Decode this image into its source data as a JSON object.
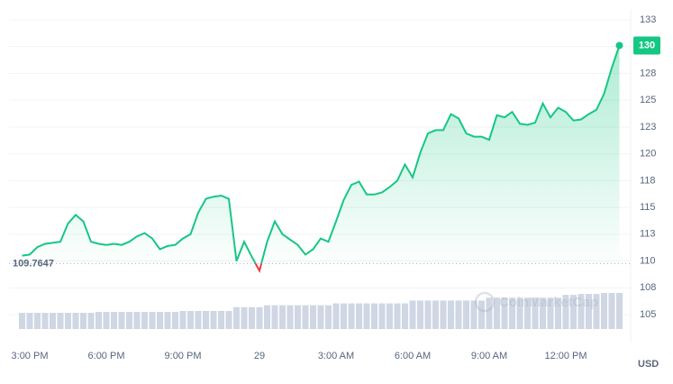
{
  "chart_data": {
    "type": "line",
    "categories": [
      null,
      "3:00 PM",
      null,
      null,
      null,
      null,
      null,
      null,
      null,
      null,
      null,
      "6:00 PM",
      null,
      null,
      null,
      null,
      null,
      null,
      null,
      null,
      null,
      "9:00 PM",
      null,
      null,
      null,
      null,
      null,
      null,
      null,
      null,
      null,
      "29",
      null,
      null,
      null,
      null,
      null,
      null,
      null,
      null,
      null,
      "3:00 AM",
      null,
      null,
      null,
      null,
      null,
      null,
      null,
      null,
      null,
      "6:00 AM",
      null,
      null,
      null,
      null,
      null,
      null,
      null,
      null,
      null,
      "9:00 AM",
      null,
      null,
      null,
      null,
      null,
      null,
      null,
      null,
      null,
      "12:00 PM",
      null,
      null,
      null,
      null,
      null,
      null,
      null
    ],
    "series": [
      {
        "name": "Price",
        "color": "#16c784",
        "below_color": "#ea3943",
        "values": [
          110.5,
          110.6,
          111.3,
          111.6,
          111.7,
          111.8,
          113.5,
          114.3,
          113.7,
          111.8,
          111.6,
          111.5,
          111.6,
          111.5,
          111.8,
          112.3,
          112.6,
          112.1,
          111.1,
          111.4,
          111.5,
          112.1,
          112.5,
          114.5,
          115.8,
          116.0,
          116.1,
          115.8,
          110.0,
          111.8,
          110.4,
          109.1,
          111.8,
          113.7,
          112.5,
          112.0,
          111.5,
          110.6,
          111.1,
          112.1,
          111.8,
          113.7,
          115.7,
          117.1,
          117.4,
          116.2,
          116.2,
          116.4,
          116.9,
          117.5,
          119.0,
          117.8,
          120.1,
          121.9,
          122.2,
          122.2,
          123.7,
          123.3,
          121.9,
          121.6,
          121.6,
          121.3,
          123.6,
          123.4,
          123.9,
          122.8,
          122.7,
          122.9,
          124.7,
          123.4,
          124.3,
          123.9,
          123.1,
          123.2,
          123.7,
          124.1,
          125.6,
          128.0,
          130.1
        ],
        "value_labels": [
          null,
          null,
          null,
          null,
          null,
          null,
          null,
          null,
          null,
          null,
          null,
          null,
          null,
          null,
          null,
          null,
          null,
          null,
          null,
          null,
          null,
          null,
          null,
          null,
          null,
          null,
          null,
          null,
          null,
          null,
          null,
          null,
          null,
          null,
          null,
          null,
          null,
          null,
          null,
          null,
          null,
          null,
          null,
          null,
          null,
          null,
          null,
          null,
          null,
          null,
          null,
          null,
          null,
          null,
          null,
          null,
          null,
          null,
          null,
          null,
          null,
          null,
          null,
          null,
          null,
          null,
          null,
          null,
          null,
          null,
          null,
          null,
          null,
          null,
          null,
          null,
          null,
          null,
          "130"
        ]
      },
      {
        "name": "Volume",
        "color": "#cfd6e4",
        "values": [
          17,
          17,
          17,
          17,
          17,
          17,
          17,
          17,
          17,
          17,
          18,
          18,
          18,
          18,
          18,
          18,
          18,
          18,
          18,
          18,
          18,
          19,
          19,
          19,
          19,
          19,
          19,
          19,
          23,
          23,
          23,
          23,
          25,
          25,
          25,
          25,
          25,
          25,
          25,
          25,
          25,
          27,
          27,
          27,
          27,
          27,
          27,
          27,
          27,
          27,
          27,
          30,
          30,
          30,
          30,
          30,
          30,
          30,
          30,
          30,
          30,
          33,
          33,
          33,
          33,
          33,
          33,
          33,
          33,
          33,
          33,
          36,
          36,
          37,
          37,
          37,
          38,
          38,
          38
        ]
      }
    ],
    "reference_line": 109.7647,
    "ylim": [
      102.4,
      133.5
    ],
    "yticks": [
      105,
      {
        "value": 107.5,
        "label": "108"
      },
      110,
      {
        "value": 112.5,
        "label": "113"
      },
      115,
      {
        "value": 117.5,
        "label": "118"
      },
      120,
      {
        "value": 122.5,
        "label": "123"
      },
      125,
      {
        "value": 127.5,
        "label": "128"
      },
      130,
      {
        "value": 132.5,
        "label": "133"
      }
    ],
    "grid": true,
    "currency": "USD",
    "watermark": "CoinMarketCap"
  }
}
